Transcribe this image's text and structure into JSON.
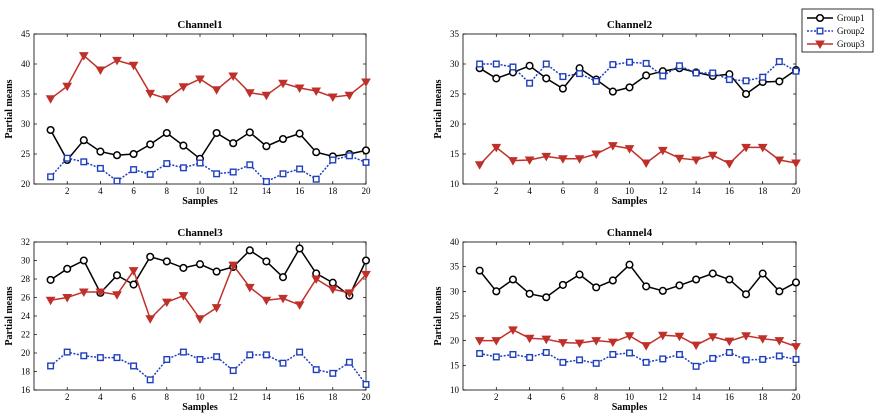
{
  "legend": {
    "entries": [
      {
        "name": "Group1",
        "color": "#000000",
        "marker": "circle",
        "dash": "solid"
      },
      {
        "name": "Group2",
        "color": "#1f3fbf",
        "marker": "square",
        "dash": "dotted"
      },
      {
        "name": "Group3",
        "color": "#c0302a",
        "marker": "triangle-down",
        "dash": "solid"
      }
    ]
  },
  "chart_data": [
    {
      "type": "line",
      "title": "Channel1",
      "xlabel": "Samples",
      "ylabel": "Partial means",
      "xlim": [
        0,
        20
      ],
      "ylim": [
        20,
        45
      ],
      "xticks": [
        2,
        4,
        6,
        8,
        10,
        12,
        14,
        16,
        18,
        20
      ],
      "yticks": [
        20,
        25,
        30,
        35,
        40,
        45
      ],
      "x": [
        1,
        2,
        3,
        4,
        5,
        6,
        7,
        8,
        9,
        10,
        11,
        12,
        13,
        14,
        15,
        16,
        17,
        18,
        19,
        20
      ],
      "series": [
        {
          "name": "Group1",
          "values": [
            29.0,
            24.0,
            27.3,
            25.4,
            24.8,
            25.0,
            26.6,
            28.5,
            26.4,
            24.2,
            28.5,
            26.8,
            28.6,
            26.3,
            27.5,
            28.4,
            25.3,
            24.6,
            25.0,
            25.6
          ]
        },
        {
          "name": "Group2",
          "values": [
            21.2,
            24.3,
            23.7,
            22.6,
            20.5,
            22.4,
            21.6,
            23.4,
            22.7,
            23.5,
            21.7,
            22.0,
            23.2,
            20.4,
            21.7,
            22.5,
            20.8,
            24.0,
            24.7,
            23.6
          ]
        },
        {
          "name": "Group3",
          "values": [
            34.2,
            36.3,
            41.4,
            39.0,
            40.6,
            39.8,
            35.1,
            34.2,
            36.2,
            37.5,
            35.7,
            38.0,
            35.2,
            34.8,
            36.8,
            36.0,
            35.5,
            34.5,
            34.8,
            37.0
          ]
        }
      ]
    },
    {
      "type": "line",
      "title": "Channel2",
      "xlabel": "Samples",
      "ylabel": "Partial means",
      "xlim": [
        0,
        20
      ],
      "ylim": [
        10,
        35
      ],
      "xticks": [
        2,
        4,
        6,
        8,
        10,
        12,
        14,
        16,
        18,
        20
      ],
      "yticks": [
        10,
        15,
        20,
        25,
        30,
        35
      ],
      "x": [
        1,
        2,
        3,
        4,
        5,
        6,
        7,
        8,
        9,
        10,
        11,
        12,
        13,
        14,
        15,
        16,
        17,
        18,
        19,
        20
      ],
      "series": [
        {
          "name": "Group1",
          "values": [
            29.3,
            27.6,
            28.6,
            29.7,
            27.6,
            25.9,
            29.3,
            27.4,
            25.4,
            26.1,
            28.1,
            28.8,
            29.3,
            28.6,
            28.0,
            28.3,
            25.0,
            27.0,
            27.1,
            29.0
          ]
        },
        {
          "name": "Group2",
          "values": [
            30.0,
            30.0,
            29.5,
            26.8,
            30.0,
            27.9,
            28.4,
            27.1,
            29.9,
            30.3,
            30.1,
            28.0,
            29.7,
            28.5,
            28.5,
            27.4,
            27.2,
            27.8,
            30.4,
            28.8
          ]
        },
        {
          "name": "Group3",
          "values": [
            13.2,
            16.1,
            13.9,
            14.0,
            14.6,
            14.2,
            14.2,
            15.0,
            16.4,
            15.9,
            13.5,
            15.6,
            14.3,
            14.0,
            14.8,
            13.4,
            16.1,
            16.1,
            14.0,
            13.5
          ]
        }
      ]
    },
    {
      "type": "line",
      "title": "Channel3",
      "xlabel": "Samples",
      "ylabel": "Partial means",
      "xlim": [
        0,
        20
      ],
      "ylim": [
        16,
        32
      ],
      "xticks": [
        2,
        4,
        6,
        8,
        10,
        12,
        14,
        16,
        18,
        20
      ],
      "yticks": [
        16,
        18,
        20,
        22,
        24,
        26,
        28,
        30,
        32
      ],
      "x": [
        1,
        2,
        3,
        4,
        5,
        6,
        7,
        8,
        9,
        10,
        11,
        12,
        13,
        14,
        15,
        16,
        17,
        18,
        19,
        20
      ],
      "series": [
        {
          "name": "Group1",
          "values": [
            27.9,
            29.1,
            30.0,
            26.5,
            28.4,
            27.4,
            30.4,
            29.9,
            29.2,
            29.6,
            28.8,
            29.3,
            31.1,
            29.9,
            28.2,
            31.3,
            28.6,
            27.6,
            26.2,
            30.0
          ]
        },
        {
          "name": "Group2",
          "values": [
            18.6,
            20.1,
            19.7,
            19.5,
            19.5,
            18.6,
            17.1,
            19.3,
            20.1,
            19.3,
            19.6,
            18.1,
            19.8,
            19.8,
            18.9,
            20.1,
            18.2,
            17.8,
            19.0,
            16.6
          ]
        },
        {
          "name": "Group3",
          "values": [
            25.7,
            26.0,
            26.6,
            26.6,
            26.3,
            28.9,
            23.7,
            25.5,
            26.2,
            23.7,
            24.9,
            29.5,
            27.1,
            25.7,
            25.9,
            25.2,
            28.0,
            26.9,
            26.5,
            28.5
          ]
        }
      ]
    },
    {
      "type": "line",
      "title": "Channel4",
      "xlabel": "Samples",
      "ylabel": "Partial means",
      "xlim": [
        0,
        20
      ],
      "ylim": [
        10,
        40
      ],
      "xticks": [
        2,
        4,
        6,
        8,
        10,
        12,
        14,
        16,
        18,
        20
      ],
      "yticks": [
        10,
        15,
        20,
        25,
        30,
        35,
        40
      ],
      "x": [
        1,
        2,
        3,
        4,
        5,
        6,
        7,
        8,
        9,
        10,
        11,
        12,
        13,
        14,
        15,
        16,
        17,
        18,
        19,
        20
      ],
      "series": [
        {
          "name": "Group1",
          "values": [
            34.2,
            30.0,
            32.4,
            29.5,
            28.8,
            31.3,
            33.4,
            30.8,
            32.2,
            35.4,
            31.0,
            30.1,
            31.2,
            32.4,
            33.6,
            32.4,
            29.4,
            33.6,
            30.0,
            31.8
          ]
        },
        {
          "name": "Group2",
          "values": [
            17.4,
            16.7,
            17.2,
            16.6,
            17.6,
            15.6,
            16.1,
            15.4,
            17.2,
            17.5,
            15.6,
            16.3,
            17.2,
            14.8,
            16.4,
            17.6,
            16.1,
            16.2,
            16.9,
            16.2
          ]
        },
        {
          "name": "Group3",
          "values": [
            20.0,
            20.0,
            22.2,
            20.5,
            20.3,
            19.6,
            19.5,
            20.0,
            19.7,
            21.0,
            19.0,
            21.1,
            20.9,
            19.1,
            20.8,
            19.9,
            21.0,
            20.4,
            20.0,
            18.8
          ]
        }
      ]
    }
  ]
}
